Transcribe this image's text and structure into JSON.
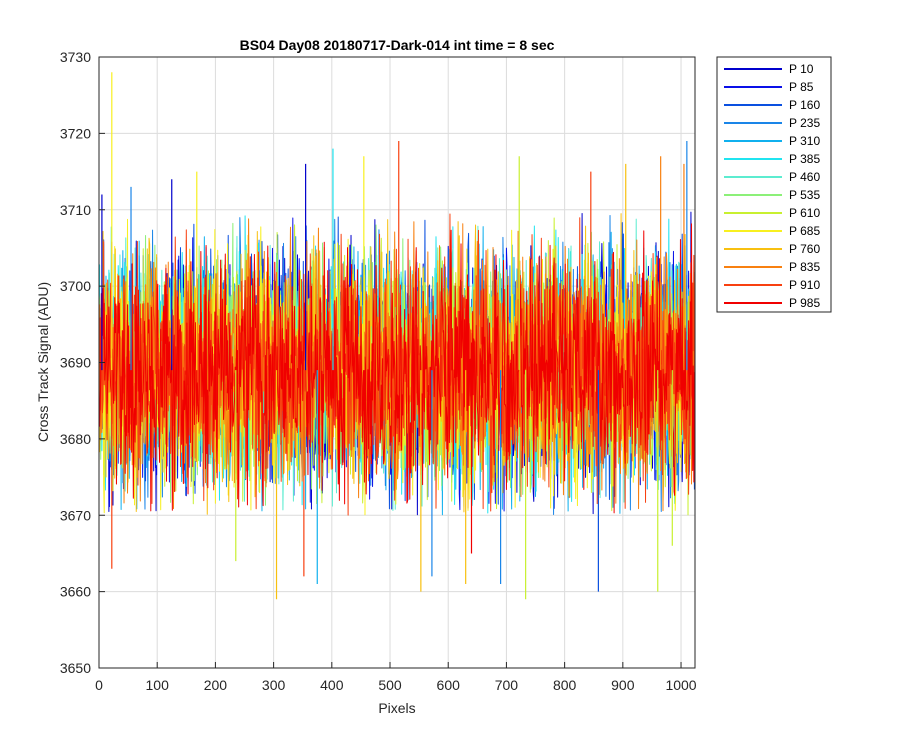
{
  "chart_data": {
    "type": "line",
    "title": "BS04 Day08 20180717-Dark-014 int time = 8 sec",
    "xlabel": "Pixels",
    "ylabel": "Cross Track Signal (ADU)",
    "xlim": [
      0,
      1024
    ],
    "ylim": [
      3650,
      3730
    ],
    "xticks": [
      0,
      100,
      200,
      300,
      400,
      500,
      600,
      700,
      800,
      900,
      1000
    ],
    "yticks": [
      3650,
      3660,
      3670,
      3680,
      3690,
      3700,
      3710,
      3720,
      3730
    ],
    "grid": true,
    "legend_location": "outside-top-right",
    "num_points": 1024,
    "noise": {
      "center": 3689,
      "core_spread": 12,
      "typical_min": 3670,
      "typical_max": 3710
    },
    "series": [
      {
        "name": "P 10",
        "color": "#0000cc"
      },
      {
        "name": "P 85",
        "color": "#0a10e8"
      },
      {
        "name": "P 160",
        "color": "#0a50e0"
      },
      {
        "name": "P 235",
        "color": "#1a85e8"
      },
      {
        "name": "P 310",
        "color": "#10b0ee"
      },
      {
        "name": "P 385",
        "color": "#20e4f0"
      },
      {
        "name": "P 460",
        "color": "#5cecd0"
      },
      {
        "name": "P 535",
        "color": "#8cf078"
      },
      {
        "name": "P 610",
        "color": "#c8f030"
      },
      {
        "name": "P 685",
        "color": "#f8f020"
      },
      {
        "name": "P 760",
        "color": "#f8c010"
      },
      {
        "name": "P 835",
        "color": "#f88010"
      },
      {
        "name": "P 910",
        "color": "#f84010"
      },
      {
        "name": "P 985",
        "color": "#f00000"
      }
    ],
    "spikes": [
      {
        "series": "P 685",
        "x": 22,
        "y": 3728
      },
      {
        "series": "P 910",
        "x": 22,
        "y": 3663
      },
      {
        "series": "P 10",
        "x": 5,
        "y": 3712
      },
      {
        "series": "P 235",
        "x": 55,
        "y": 3713
      },
      {
        "series": "P 10",
        "x": 125,
        "y": 3714
      },
      {
        "series": "P 685",
        "x": 168,
        "y": 3715
      },
      {
        "series": "P 610",
        "x": 235,
        "y": 3664
      },
      {
        "series": "P 760",
        "x": 305,
        "y": 3659
      },
      {
        "series": "P 10",
        "x": 355,
        "y": 3716
      },
      {
        "series": "P 310",
        "x": 375,
        "y": 3661
      },
      {
        "series": "P 385",
        "x": 402,
        "y": 3718
      },
      {
        "series": "P 910",
        "x": 352,
        "y": 3662
      },
      {
        "series": "P 685",
        "x": 455,
        "y": 3717
      },
      {
        "series": "P 910",
        "x": 515,
        "y": 3719
      },
      {
        "series": "P 760",
        "x": 553,
        "y": 3660
      },
      {
        "series": "P 235",
        "x": 572,
        "y": 3662
      },
      {
        "series": "P 760",
        "x": 630,
        "y": 3661
      },
      {
        "series": "P 985",
        "x": 640,
        "y": 3665
      },
      {
        "series": "P 235",
        "x": 690,
        "y": 3661
      },
      {
        "series": "P 610",
        "x": 722,
        "y": 3717
      },
      {
        "series": "P 610",
        "x": 733,
        "y": 3659
      },
      {
        "series": "P 160",
        "x": 858,
        "y": 3660
      },
      {
        "series": "P 910",
        "x": 845,
        "y": 3715
      },
      {
        "series": "P 760",
        "x": 905,
        "y": 3716
      },
      {
        "series": "P 610",
        "x": 960,
        "y": 3660
      },
      {
        "series": "P 835",
        "x": 965,
        "y": 3717
      },
      {
        "series": "P 235",
        "x": 1010,
        "y": 3719
      },
      {
        "series": "P 610",
        "x": 985,
        "y": 3666
      },
      {
        "series": "P 835",
        "x": 1005,
        "y": 3716
      }
    ]
  }
}
